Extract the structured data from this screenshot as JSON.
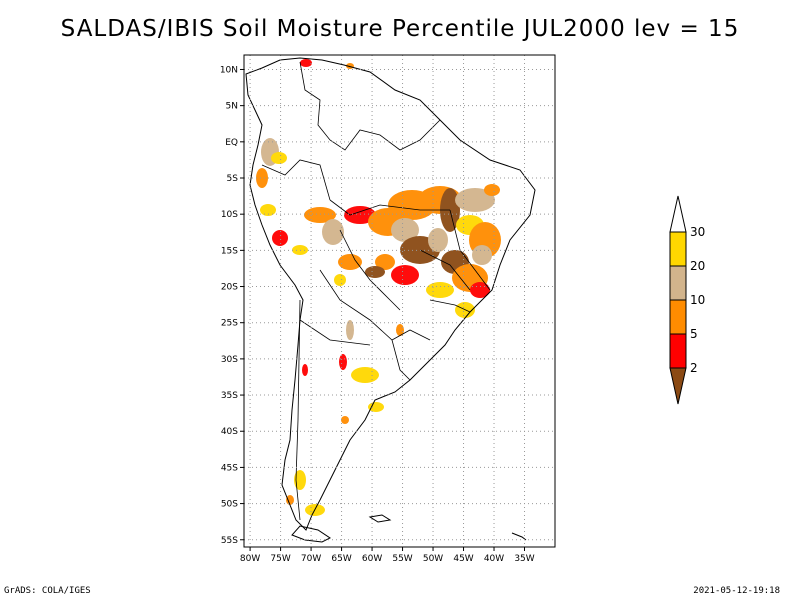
{
  "title": "SALDAS/IBIS Soil Moisture Percentile JUL2000 lev = 15",
  "map": {
    "lon_range": [
      -81,
      -30
    ],
    "lat_range": [
      -56,
      12
    ],
    "lat_labels": [
      {
        "value": 10,
        "label": "10N"
      },
      {
        "value": 5,
        "label": "5N"
      },
      {
        "value": 0,
        "label": "EQ"
      },
      {
        "value": -5,
        "label": "5S"
      },
      {
        "value": -10,
        "label": "10S"
      },
      {
        "value": -15,
        "label": "15S"
      },
      {
        "value": -20,
        "label": "20S"
      },
      {
        "value": -25,
        "label": "25S"
      },
      {
        "value": -30,
        "label": "30S"
      },
      {
        "value": -35,
        "label": "35S"
      },
      {
        "value": -40,
        "label": "40S"
      },
      {
        "value": -45,
        "label": "45S"
      },
      {
        "value": -50,
        "label": "50S"
      },
      {
        "value": -55,
        "label": "55S"
      }
    ],
    "lon_labels": [
      {
        "value": -80,
        "label": "80W"
      },
      {
        "value": -75,
        "label": "75W"
      },
      {
        "value": -70,
        "label": "70W"
      },
      {
        "value": -65,
        "label": "65W"
      },
      {
        "value": -60,
        "label": "60W"
      },
      {
        "value": -55,
        "label": "55W"
      },
      {
        "value": -50,
        "label": "50W"
      },
      {
        "value": -45,
        "label": "45W"
      },
      {
        "value": -40,
        "label": "40W"
      },
      {
        "value": -35,
        "label": "35W"
      }
    ],
    "grid": true
  },
  "colorbar": {
    "labels": [
      "2",
      "5",
      "10",
      "20",
      "30"
    ],
    "colors": [
      "#8b4a14",
      "#ff0000",
      "#ff8c00",
      "#d2b48c",
      "#ffd700",
      "#ffffff"
    ]
  },
  "footer": {
    "left": "GrADS: COLA/IGES",
    "right": "2021-05-12-19:18"
  }
}
